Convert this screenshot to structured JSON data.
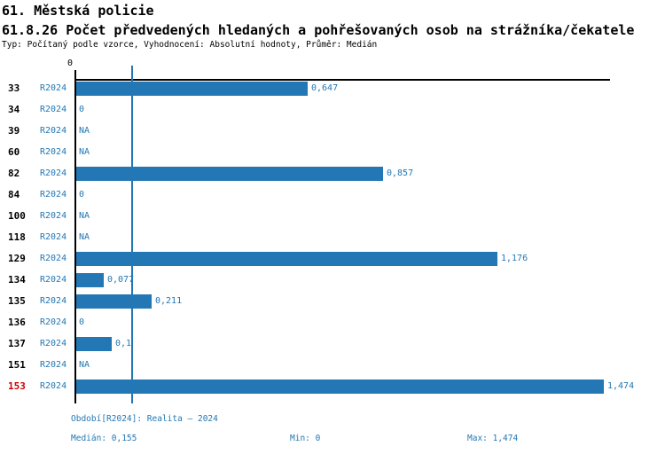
{
  "title": "61. Městská policie",
  "subtitle": "61.8.26 Počet předvedených hledaných a pohřešovaných osob na strážníka/čekatele",
  "meta_line": "Typ: Počítaný podle vzorce, Vyhodnocení: Absolutní hodnoty, Průměr: Medián",
  "axis": {
    "zero_label": "0"
  },
  "chart_data": {
    "type": "bar",
    "orientation": "horizontal",
    "title": "61.8.26 Počet předvedených hledaných a pohřešovaných osob na strážníka/čekatele",
    "categories": [
      "33",
      "34",
      "39",
      "60",
      "82",
      "84",
      "100",
      "118",
      "129",
      "134",
      "135",
      "136",
      "137",
      "151",
      "153"
    ],
    "series": [
      {
        "name": "R2024",
        "values": [
          0.647,
          0,
          null,
          null,
          0.857,
          0,
          null,
          null,
          1.176,
          0.077,
          0.211,
          0,
          0.1,
          null,
          1.474
        ],
        "value_labels": [
          "0,647",
          "0",
          "NA",
          "NA",
          "0,857",
          "0",
          "NA",
          "NA",
          "1,176",
          "0,077",
          "0,211",
          "0",
          "0,1",
          "NA",
          "1,474"
        ]
      }
    ],
    "highlighted_category": "153",
    "xlim": [
      0,
      1.49
    ],
    "median_line": 0.155,
    "bar_color": "#2377b4",
    "highlight_color": "#cc0000",
    "grid": false,
    "legend": false
  },
  "footer": {
    "period_line": "Období[R2024]: Realita – 2024",
    "median_label": "Medián: 0,155",
    "min_label": "Min: 0",
    "max_label": "Max: 1,474"
  }
}
